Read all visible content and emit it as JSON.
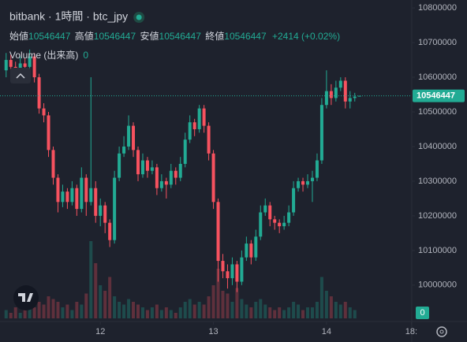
{
  "chart_data": {
    "type": "candlestick",
    "title": "bitbank · 1時間 · btc_jpy",
    "legend_labels": {
      "open": "始値",
      "high": "高値",
      "low": "安値",
      "close": "終値"
    },
    "legend_change": "+2414 (+0.02%)",
    "volume_name": "Volume (出来高)",
    "up_color": "#22ab94",
    "down_color": "#f7525f",
    "open": [
      10620000,
      10650000,
      10630000,
      10610000,
      10640000,
      10630000,
      10660000,
      10600000,
      10510000,
      10490000,
      10390000,
      10310000,
      10240000,
      10270000,
      10240000,
      10280000,
      10220000,
      10310000,
      10240000,
      10280000,
      10200000,
      10230000,
      10180000,
      10130000,
      10310000,
      10380000,
      10400000,
      10460000,
      10390000,
      10320000,
      10360000,
      10330000,
      10340000,
      10280000,
      10300000,
      10290000,
      10330000,
      10310000,
      10350000,
      10420000,
      10470000,
      10450000,
      10510000,
      10460000,
      10380000,
      10240000,
      10070000,
      10040000,
      10020000,
      10060000,
      10010000,
      10080000,
      10120000,
      10080000,
      10140000,
      10210000,
      10230000,
      10190000,
      10180000,
      10170000,
      10180000,
      10210000,
      10280000,
      10300000,
      10290000,
      10300000,
      10310000,
      10360000,
      10520000,
      10560000,
      10540000,
      10570000,
      10590000,
      10530000,
      10540000,
      10546447
    ],
    "high": [
      10670000,
      10665000,
      10645000,
      10660000,
      10655000,
      10680000,
      10670000,
      10610000,
      10525000,
      10500000,
      10400000,
      10320000,
      10290000,
      10280000,
      10300000,
      10290000,
      10340000,
      10320000,
      10600000,
      10300000,
      10250000,
      10240000,
      10190000,
      10330000,
      10400000,
      10430000,
      10490000,
      10470000,
      10400000,
      10380000,
      10370000,
      10360000,
      10350000,
      10320000,
      10310000,
      10350000,
      10340000,
      10370000,
      10440000,
      10490000,
      10480000,
      10520000,
      10520000,
      10470000,
      10390000,
      10250000,
      10090000,
      10060000,
      10080000,
      10070000,
      10100000,
      10140000,
      10130000,
      10160000,
      10230000,
      10250000,
      10240000,
      10200000,
      10190000,
      10200000,
      10230000,
      10300000,
      10310000,
      10310000,
      10320000,
      10330000,
      10380000,
      10540000,
      10620000,
      10580000,
      10590000,
      10600000,
      10600000,
      10560000,
      10555000,
      10546447
    ],
    "low": [
      10600000,
      10615000,
      10590000,
      10600000,
      10615000,
      10620000,
      10585000,
      10495000,
      10470000,
      10370000,
      10290000,
      10210000,
      10225000,
      10220000,
      10230000,
      10200000,
      10210000,
      10200000,
      10230000,
      10180000,
      10170000,
      10150000,
      10110000,
      10120000,
      10300000,
      10370000,
      10390000,
      10370000,
      10300000,
      10310000,
      10310000,
      10320000,
      10260000,
      10270000,
      10250000,
      10280000,
      10290000,
      10300000,
      10340000,
      10410000,
      10430000,
      10440000,
      10440000,
      10360000,
      10220000,
      10010000,
      10020000,
      9990000,
      10000000,
      9980000,
      10000000,
      10070000,
      10060000,
      10070000,
      10130000,
      10200000,
      10170000,
      10160000,
      10150000,
      10160000,
      10170000,
      10200000,
      10270000,
      10270000,
      10280000,
      10240000,
      10300000,
      10350000,
      10510000,
      10520000,
      10530000,
      10560000,
      10510000,
      10510000,
      10530000,
      10546447
    ],
    "close": [
      10650000,
      10630000,
      10610000,
      10640000,
      10630000,
      10660000,
      10600000,
      10510000,
      10490000,
      10390000,
      10310000,
      10240000,
      10270000,
      10240000,
      10280000,
      10220000,
      10310000,
      10240000,
      10280000,
      10200000,
      10230000,
      10180000,
      10130000,
      10310000,
      10380000,
      10400000,
      10460000,
      10390000,
      10320000,
      10360000,
      10330000,
      10340000,
      10280000,
      10300000,
      10290000,
      10330000,
      10310000,
      10350000,
      10420000,
      10470000,
      10450000,
      10510000,
      10460000,
      10380000,
      10240000,
      10070000,
      10040000,
      10020000,
      10060000,
      10010000,
      10080000,
      10120000,
      10080000,
      10140000,
      10210000,
      10230000,
      10190000,
      10180000,
      10170000,
      10180000,
      10210000,
      10280000,
      10300000,
      10290000,
      10300000,
      10310000,
      10360000,
      10520000,
      10560000,
      10540000,
      10570000,
      10590000,
      10530000,
      10540000,
      10544033,
      10546447
    ],
    "volume": [
      3,
      2,
      4,
      2,
      3,
      5,
      4,
      6,
      5,
      8,
      7,
      6,
      4,
      5,
      3,
      6,
      5,
      9,
      28,
      20,
      12,
      10,
      15,
      8,
      6,
      5,
      7,
      6,
      5,
      4,
      3,
      4,
      5,
      3,
      4,
      3,
      2,
      4,
      6,
      7,
      5,
      6,
      5,
      8,
      12,
      18,
      10,
      9,
      6,
      11,
      7,
      5,
      4,
      6,
      7,
      5,
      4,
      3,
      4,
      3,
      4,
      6,
      5,
      3,
      4,
      4,
      6,
      15,
      10,
      8,
      6,
      5,
      6,
      4,
      3,
      0
    ],
    "ylim": [
      9895000,
      10823000
    ],
    "yticks": [
      10000000,
      10100000,
      10200000,
      10300000,
      10400000,
      10500000,
      10600000,
      10700000,
      10800000
    ],
    "y2lim": [
      0,
      30
    ],
    "xlim": [
      -1.3,
      86.1
    ],
    "xticks": [
      {
        "value": 20,
        "label": "12"
      },
      {
        "value": 44,
        "label": "13"
      },
      {
        "value": 68,
        "label": "14"
      },
      {
        "value": 86,
        "label": "18:"
      }
    ],
    "grid": false
  }
}
